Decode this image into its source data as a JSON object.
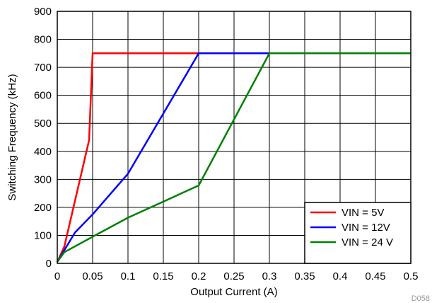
{
  "chart_data": {
    "type": "line",
    "title": "",
    "xlabel": "Output Current (A)",
    "ylabel": "Switching Frequency (kHz)",
    "xlim": [
      0,
      0.5
    ],
    "ylim": [
      0,
      900
    ],
    "xticks": [
      "0",
      "0.05",
      "0.1",
      "0.15",
      "0.2",
      "0.25",
      "0.3",
      "0.35",
      "0.4",
      "0.45",
      "0.5"
    ],
    "yticks": [
      "0",
      "100",
      "200",
      "300",
      "400",
      "500",
      "600",
      "700",
      "800",
      "900"
    ],
    "grid": true,
    "legend_position": "bottom-right",
    "series": [
      {
        "name": "VIN = 5V",
        "color": "#ff0000",
        "points": [
          [
            0,
            5
          ],
          [
            0.01,
            60
          ],
          [
            0.045,
            440
          ],
          [
            0.05,
            750
          ],
          [
            0.5,
            750
          ]
        ]
      },
      {
        "name": "VIN = 12V",
        "color": "#0000ff",
        "points": [
          [
            0,
            5
          ],
          [
            0.025,
            110
          ],
          [
            0.05,
            175
          ],
          [
            0.1,
            320
          ],
          [
            0.2,
            750
          ],
          [
            0.5,
            750
          ]
        ]
      },
      {
        "name": "VIN = 24 V",
        "color": "#008000",
        "points": [
          [
            0,
            5
          ],
          [
            0.01,
            40
          ],
          [
            0.05,
            95
          ],
          [
            0.1,
            163
          ],
          [
            0.2,
            278
          ],
          [
            0.3,
            750
          ],
          [
            0.5,
            750
          ]
        ]
      }
    ]
  },
  "figure_code": "D058"
}
